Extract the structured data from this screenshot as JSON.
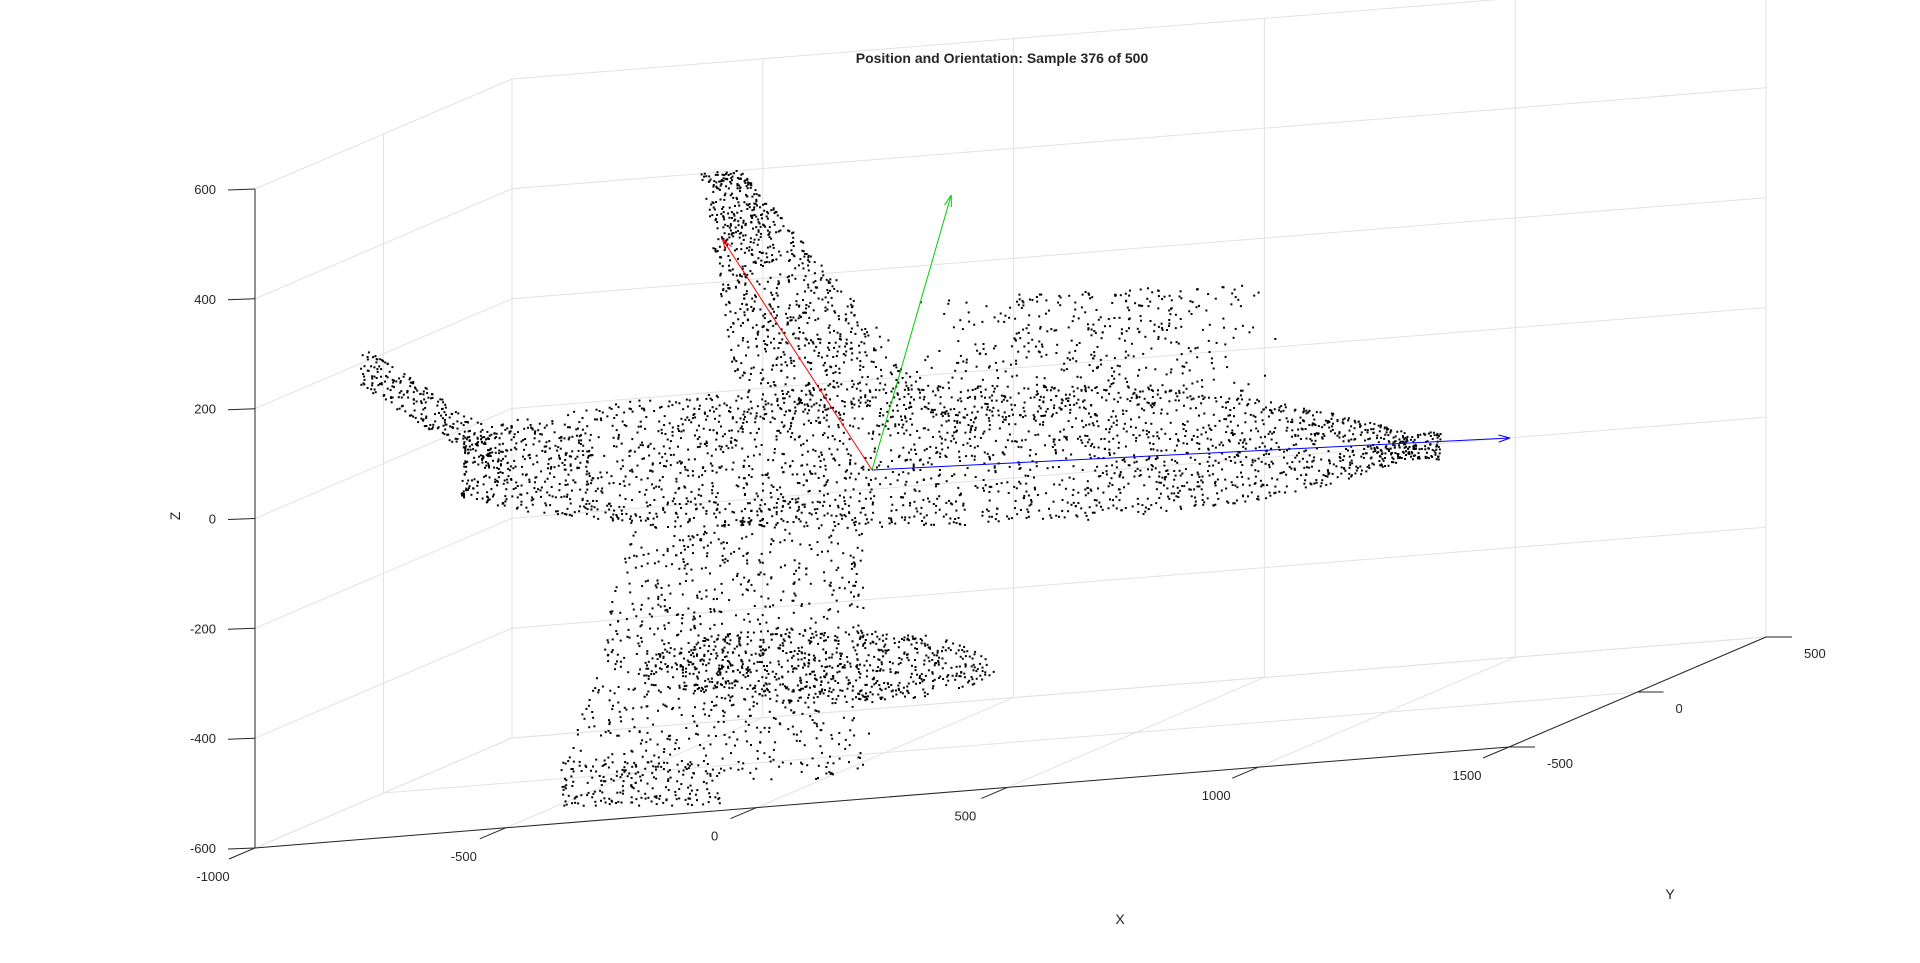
{
  "chart_data": {
    "type": "scatter",
    "projection": "3d",
    "title": "Position and Orientation: Sample 376 of 500",
    "xlabel": "X",
    "ylabel": "Y",
    "zlabel": "Z",
    "xlim": [
      -1000,
      1500
    ],
    "ylim": [
      -500,
      500
    ],
    "zlim": [
      -600,
      600
    ],
    "x_ticks": [
      "-1000",
      "-500",
      "0",
      "500",
      "1000",
      "1500"
    ],
    "y_ticks": [
      "-500",
      "0",
      "500"
    ],
    "z_ticks": [
      "-600",
      "-400",
      "-200",
      "0",
      "200",
      "400",
      "600"
    ],
    "grid": true,
    "point_color": "#000000",
    "series": [
      {
        "type": "point-cloud",
        "description_values": "aircraft-shaped point cloud centered near origin"
      }
    ],
    "orientation_vectors": [
      {
        "color": "#ff0000",
        "origin": [
          0,
          0,
          0
        ],
        "tip": [
          -340,
          0,
          420
        ]
      },
      {
        "color": "#00cc00",
        "origin": [
          0,
          0,
          0
        ],
        "tip": [
          180,
          0,
          500
        ]
      },
      {
        "color": "#0000ff",
        "origin": [
          0,
          0,
          0
        ],
        "tip": [
          1450,
          0,
          40
        ]
      }
    ]
  }
}
